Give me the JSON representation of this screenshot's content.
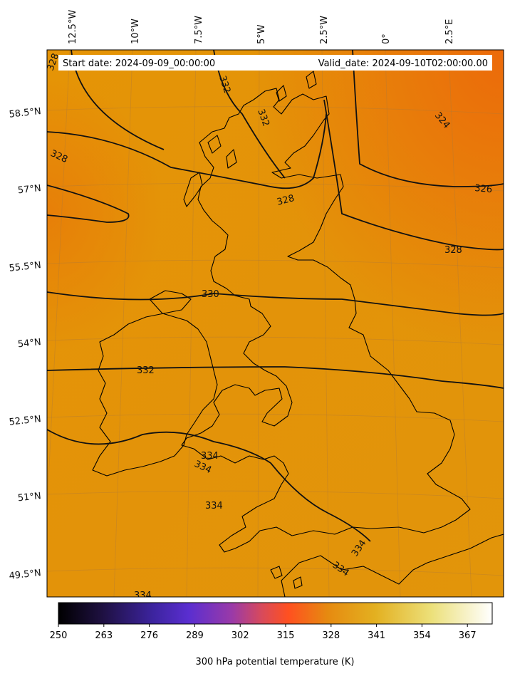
{
  "map": {
    "start_label": "Start date: 2024-09-09_00:00:00",
    "valid_label": "Valid_date: 2024-09-10T02:00:00.00",
    "lon_labels": [
      "12.5°W",
      "10°W",
      "7.5°W",
      "5°W",
      "2.5°W",
      "0°",
      "2.5°E"
    ],
    "lat_labels": [
      "58.5°N",
      "57°N",
      "55.5°N",
      "54°N",
      "52.5°N",
      "51°N",
      "49.5°N"
    ],
    "contour_labels": [
      "328",
      "328",
      "332",
      "332",
      "324",
      "326",
      "328",
      "328",
      "330",
      "332",
      "334",
      "334",
      "334",
      "334",
      "334",
      "334"
    ]
  },
  "colorbar": {
    "label": "300 hPa potential temperature (K)",
    "ticks": [
      "250",
      "263",
      "276",
      "289",
      "302",
      "315",
      "328",
      "341",
      "354",
      "367"
    ],
    "colors": [
      "#000000",
      "#1e1040",
      "#3d24a0",
      "#5a2ed0",
      "#9a3aa8",
      "#d94a5a",
      "#ff5a20",
      "#e68a10",
      "#e3b020",
      "#ece07a",
      "#ffffff"
    ]
  }
}
